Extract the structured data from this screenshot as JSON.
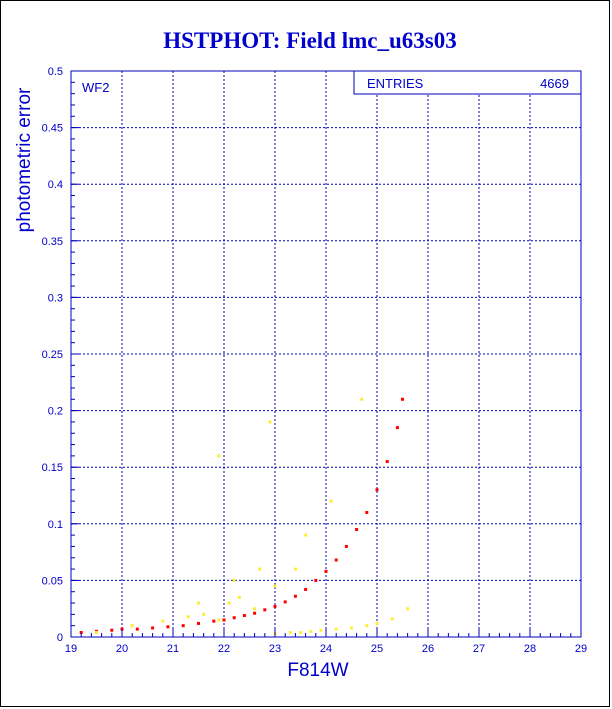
{
  "colors": {
    "frame": "#0000bb",
    "title": "#0000cc",
    "text": "#0000cc",
    "primary_points": "#ff0000",
    "secondary_points": "#ffee33"
  },
  "chart_data": {
    "type": "scatter",
    "title": "HSTPHOT: Field lmc_u63s03",
    "xlabel": "F814W",
    "ylabel": "photometric error",
    "xlim": [
      19,
      29
    ],
    "ylim": [
      0,
      0.5
    ],
    "xticks": [
      "19",
      "20",
      "21",
      "22",
      "23",
      "24",
      "25",
      "26",
      "27",
      "28",
      "29"
    ],
    "yticks": [
      "0",
      "0.05",
      "0.1",
      "0.15",
      "0.2",
      "0.25",
      "0.3",
      "0.35",
      "0.4",
      "0.45",
      "0.5"
    ],
    "grid": true,
    "panel_label": "WF2",
    "stats": {
      "label": "ENTRIES",
      "value": "4669"
    },
    "series": [
      {
        "color": "red",
        "x": [
          19.2,
          19.5,
          19.8,
          20.0,
          20.3,
          20.6,
          20.9,
          21.2,
          21.5,
          21.8,
          22.0,
          22.2,
          22.4,
          22.6,
          22.8,
          23.0,
          23.2,
          23.4,
          23.6,
          23.8,
          24.0,
          24.2,
          24.4,
          24.6,
          24.8,
          25.0,
          25.2,
          25.4,
          25.5
        ],
        "y": [
          0.004,
          0.005,
          0.006,
          0.007,
          0.007,
          0.008,
          0.009,
          0.01,
          0.012,
          0.014,
          0.015,
          0.017,
          0.019,
          0.021,
          0.024,
          0.027,
          0.031,
          0.036,
          0.042,
          0.05,
          0.058,
          0.068,
          0.08,
          0.095,
          0.11,
          0.13,
          0.155,
          0.185,
          0.21
        ]
      },
      {
        "color": "yellow",
        "x": [
          19.5,
          20.2,
          20.8,
          21.3,
          21.6,
          21.9,
          22.1,
          22.3,
          22.6,
          23.0,
          23.3,
          23.5,
          23.7,
          23.9,
          24.2,
          24.5,
          24.8,
          25.0,
          25.3,
          25.6,
          21.5,
          22.2,
          22.7,
          23.0,
          23.4,
          23.6,
          24.1,
          24.7,
          22.9,
          21.9
        ],
        "y": [
          0.004,
          0.01,
          0.014,
          0.018,
          0.02,
          0.015,
          0.03,
          0.035,
          0.025,
          0.003,
          0.004,
          0.004,
          0.005,
          0.006,
          0.007,
          0.008,
          0.01,
          0.012,
          0.016,
          0.025,
          0.03,
          0.05,
          0.06,
          0.045,
          0.06,
          0.09,
          0.12,
          0.21,
          0.19,
          0.16
        ]
      }
    ]
  }
}
